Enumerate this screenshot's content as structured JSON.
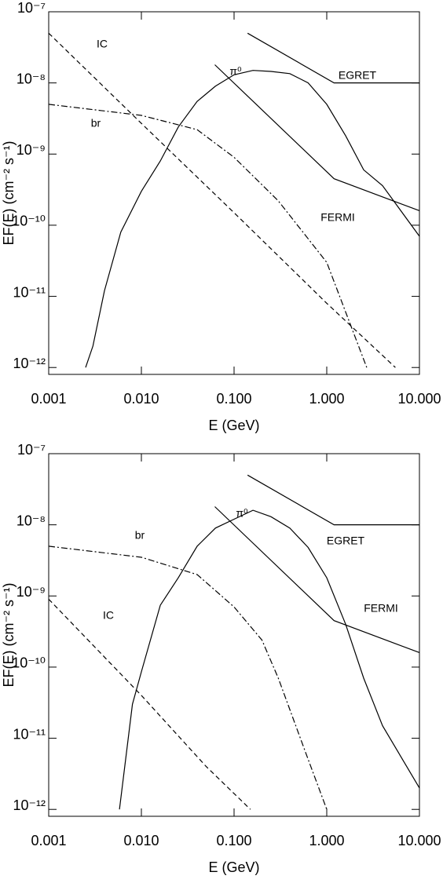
{
  "chart_data": [
    {
      "type": "line",
      "xscale": "log",
      "yscale": "log",
      "x_label": "E (GeV)",
      "y_label": "EF(E) (cm⁻² s⁻¹)",
      "xlim": [
        0.001,
        10
      ],
      "ylim": [
        8e-13,
        1e-07
      ],
      "xticks": [
        {
          "value": 0.001,
          "label": "0.001"
        },
        {
          "value": 0.01,
          "label": "0.010"
        },
        {
          "value": 0.1,
          "label": "0.100"
        },
        {
          "value": 1,
          "label": "1.000"
        },
        {
          "value": 10,
          "label": "10.000"
        }
      ],
      "yticks": [
        {
          "value": 1e-07,
          "label": "10⁻⁷"
        },
        {
          "value": 1e-08,
          "label": "10⁻⁸"
        },
        {
          "value": 1e-09,
          "label": "10⁻⁹"
        },
        {
          "value": 1e-10,
          "label": "10⁻¹⁰"
        },
        {
          "value": 1e-11,
          "label": "10⁻¹¹"
        },
        {
          "value": 1e-12,
          "label": "10⁻¹²"
        }
      ],
      "series": [
        {
          "name": "IC",
          "color": "#000",
          "style": "dashed",
          "x": [
            0.001,
            0.01,
            0.1,
            1,
            5.5
          ],
          "values": [
            5e-08,
            2.7e-09,
            1.5e-10,
            8e-12,
            1e-12
          ]
        },
        {
          "name": "br",
          "color": "#000",
          "style": "dashdot",
          "x": [
            0.001,
            0.01,
            0.04,
            0.1,
            0.3,
            1,
            2.7
          ],
          "values": [
            5e-09,
            3.5e-09,
            2.2e-09,
            9e-10,
            2.2e-10,
            3e-11,
            1e-12
          ]
        },
        {
          "name": "π⁰",
          "color": "#000",
          "style": "solid",
          "x": [
            0.0025,
            0.003,
            0.004,
            0.006,
            0.01,
            0.016,
            0.025,
            0.04,
            0.063,
            0.1,
            0.16,
            0.25,
            0.4,
            0.63,
            1,
            1.6,
            2.5,
            4,
            10
          ],
          "values": [
            1e-12,
            2e-12,
            1.2e-11,
            8e-11,
            3e-10,
            8e-10,
            2.4e-09,
            5.5e-09,
            9e-09,
            1.3e-08,
            1.5e-08,
            1.45e-08,
            1.35e-08,
            1e-08,
            5e-09,
            1.8e-09,
            6e-10,
            3.6e-10,
            7e-11
          ]
        },
        {
          "name": "EGRET",
          "color": "#000",
          "style": "solid",
          "x": [
            0.14,
            1.2,
            10
          ],
          "values": [
            5e-08,
            1e-08,
            1e-08
          ]
        },
        {
          "name": "FERMI",
          "color": "#000",
          "style": "solid",
          "x": [
            0.062,
            1.2,
            5.7,
            10
          ],
          "values": [
            1.8e-08,
            4.5e-10,
            2.1e-10,
            1.6e-10
          ]
        }
      ]
    },
    {
      "type": "line",
      "xscale": "log",
      "yscale": "log",
      "x_label": "E (GeV)",
      "y_label": "EF(E) (cm⁻² s⁻¹)",
      "xlim": [
        0.001,
        10
      ],
      "ylim": [
        8e-13,
        1e-07
      ],
      "xticks": [
        {
          "value": 0.001,
          "label": "0.001"
        },
        {
          "value": 0.01,
          "label": "0.010"
        },
        {
          "value": 0.1,
          "label": "0.100"
        },
        {
          "value": 1,
          "label": "1.000"
        },
        {
          "value": 10,
          "label": "10.000"
        }
      ],
      "yticks": [
        {
          "value": 1e-07,
          "label": "10⁻⁷"
        },
        {
          "value": 1e-08,
          "label": "10⁻⁸"
        },
        {
          "value": 1e-09,
          "label": "10⁻⁹"
        },
        {
          "value": 1e-10,
          "label": "10⁻¹⁰"
        },
        {
          "value": 1e-11,
          "label": "10⁻¹¹"
        },
        {
          "value": 1e-12,
          "label": "10⁻¹²"
        }
      ],
      "series": [
        {
          "name": "IC",
          "color": "#000",
          "style": "dashed",
          "x": [
            0.001,
            0.01,
            0.05,
            0.15
          ],
          "values": [
            9e-10,
            4e-11,
            4e-12,
            1e-12
          ]
        },
        {
          "name": "br",
          "color": "#000",
          "style": "dashdot",
          "x": [
            0.001,
            0.01,
            0.04,
            0.1,
            0.2,
            0.3,
            0.6,
            1
          ],
          "values": [
            5e-09,
            3.5e-09,
            2e-09,
            7e-10,
            2.4e-10,
            7e-11,
            6e-12,
            1e-12
          ]
        },
        {
          "name": "π⁰",
          "color": "#000",
          "style": "solid",
          "x": [
            0.0058,
            0.008,
            0.01,
            0.016,
            0.025,
            0.04,
            0.063,
            0.1,
            0.16,
            0.25,
            0.4,
            0.63,
            1,
            1.6,
            2.5,
            4,
            10
          ],
          "values": [
            1e-12,
            3e-11,
            8.6e-11,
            7.4e-10,
            1.8e-09,
            5e-09,
            9e-09,
            1.2e-08,
            1.6e-08,
            1.3e-08,
            9e-09,
            4.8e-09,
            1.8e-09,
            4e-10,
            7e-11,
            1.5e-11,
            2e-12
          ]
        },
        {
          "name": "EGRET",
          "color": "#000",
          "style": "solid",
          "x": [
            0.14,
            1.2,
            10
          ],
          "values": [
            5e-08,
            1e-08,
            1e-08
          ]
        },
        {
          "name": "FERMI",
          "color": "#000",
          "style": "solid",
          "x": [
            0.062,
            1.2,
            5.7,
            10
          ],
          "values": [
            1.8e-08,
            4.5e-10,
            2.1e-10,
            1.6e-10
          ]
        }
      ]
    }
  ]
}
